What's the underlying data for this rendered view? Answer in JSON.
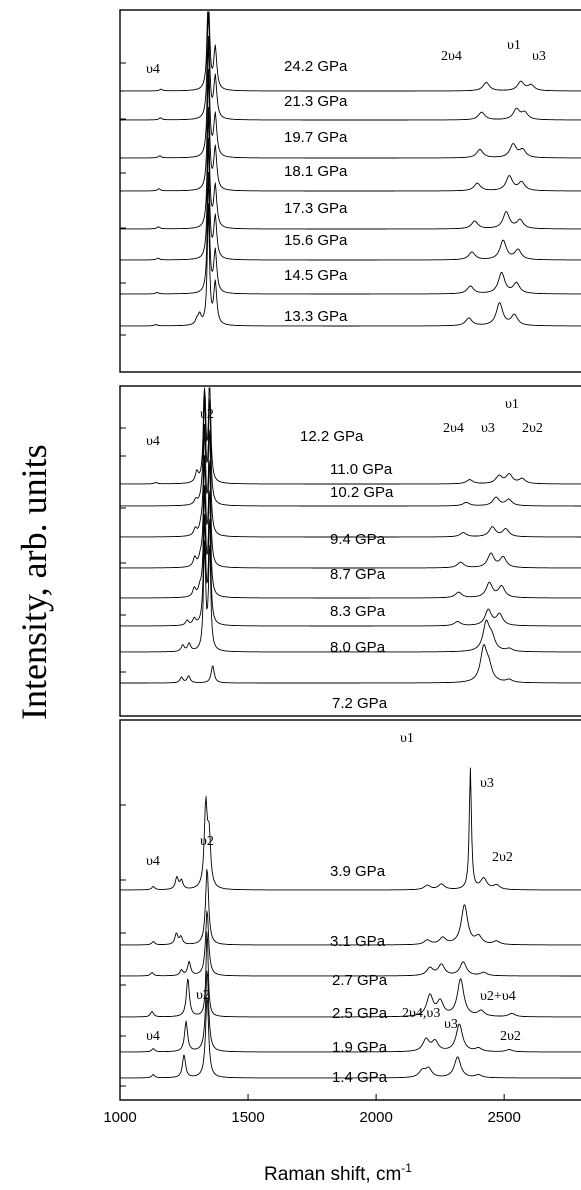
{
  "chart_data": {
    "type": "line",
    "title": "",
    "xlabel": "Raman shift, cm",
    "xlabel_sup": "-1",
    "ylabel": "Intensity, arb. units",
    "xlim": [
      1000,
      2800
    ],
    "xticks": [
      1000,
      1500,
      2000,
      2500
    ],
    "panels": [
      {
        "name": "top",
        "series": [
          {
            "name": "13.3 GPa",
            "peaks": [
              [
                1140,
                4
              ],
              [
                1300,
                14
              ],
              [
                1311,
                28
              ],
              [
                1345,
                340
              ],
              [
                1372,
                120
              ],
              [
                2362,
                22
              ],
              [
                2482,
                65
              ],
              [
                2540,
                30
              ]
            ]
          },
          {
            "name": "14.5 GPa",
            "peaks": [
              [
                1145,
                4
              ],
              [
                1345,
                340
              ],
              [
                1372,
                120
              ],
              [
                2368,
                22
              ],
              [
                2490,
                60
              ],
              [
                2548,
                30
              ]
            ]
          },
          {
            "name": "15.6 GPa",
            "peaks": [
              [
                1148,
                5
              ],
              [
                1345,
                340
              ],
              [
                1372,
                120
              ],
              [
                2374,
                22
              ],
              [
                2496,
                55
              ],
              [
                2554,
                28
              ]
            ]
          },
          {
            "name": "17.3 GPa",
            "peaks": [
              [
                1150,
                6
              ],
              [
                1345,
                340
              ],
              [
                1372,
                120
              ],
              [
                2385,
                22
              ],
              [
                2508,
                48
              ],
              [
                2562,
                25
              ]
            ]
          },
          {
            "name": "18.1 GPa",
            "peaks": [
              [
                1152,
                6
              ],
              [
                1345,
                340
              ],
              [
                1372,
                120
              ],
              [
                2395,
                22
              ],
              [
                2520,
                42
              ],
              [
                2568,
                24
              ]
            ]
          },
          {
            "name": "19.7 GPa",
            "peaks": [
              [
                1155,
                6
              ],
              [
                1345,
                340
              ],
              [
                1372,
                120
              ],
              [
                2405,
                24
              ],
              [
                2535,
                38
              ],
              [
                2572,
                22
              ]
            ]
          },
          {
            "name": "21.3 GPa",
            "peaks": [
              [
                1158,
                6
              ],
              [
                1345,
                340
              ],
              [
                1372,
                120
              ],
              [
                2412,
                22
              ],
              [
                2548,
                30
              ],
              [
                2580,
                20
              ]
            ]
          },
          {
            "name": "24.2 GPa",
            "peaks": [
              [
                1160,
                5
              ],
              [
                1345,
                340
              ],
              [
                1372,
                120
              ],
              [
                2430,
                24
              ],
              [
                2565,
                26
              ],
              [
                2605,
                16
              ]
            ]
          }
        ],
        "annotations": [
          "υ4",
          "2υ4",
          "υ1",
          "υ3"
        ]
      },
      {
        "name": "middle",
        "series": [
          {
            "name": "7.2 GPa",
            "peaks": [
              [
                1240,
                16
              ],
              [
                1268,
                20
              ],
              [
                1362,
                50
              ],
              [
                2420,
                95
              ],
              [
                2440,
                40
              ],
              [
                2520,
                8
              ]
            ]
          },
          {
            "name": "8.0 GPa",
            "peaks": [
              [
                1245,
                18
              ],
              [
                1270,
                22
              ],
              [
                1330,
                300
              ],
              [
                1350,
                300
              ],
              [
                2430,
                80
              ],
              [
                2452,
                35
              ],
              [
                2520,
                8
              ]
            ]
          },
          {
            "name": "8.3 GPa",
            "peaks": [
              [
                1262,
                14
              ],
              [
                1290,
                18
              ],
              [
                1330,
                300
              ],
              [
                1350,
                300
              ],
              [
                2318,
                12
              ],
              [
                2438,
                45
              ],
              [
                2482,
                32
              ]
            ]
          },
          {
            "name": "8.7 GPa",
            "peaks": [
              [
                1290,
                24
              ],
              [
                1312,
                20
              ],
              [
                1330,
                300
              ],
              [
                1350,
                300
              ],
              [
                2322,
                16
              ],
              [
                2442,
                42
              ],
              [
                2490,
                32
              ]
            ]
          },
          {
            "name": "9.4 GPa",
            "peaks": [
              [
                1292,
                26
              ],
              [
                1314,
                20
              ],
              [
                1330,
                300
              ],
              [
                1350,
                300
              ],
              [
                2330,
                16
              ],
              [
                2448,
                40
              ],
              [
                2496,
                30
              ]
            ]
          },
          {
            "name": "10.2 GPa",
            "peaks": [
              [
                1294,
                20
              ],
              [
                1316,
                18
              ],
              [
                1330,
                300
              ],
              [
                1350,
                300
              ],
              [
                2340,
                12
              ],
              [
                2454,
                28
              ],
              [
                2506,
                22
              ]
            ]
          },
          {
            "name": "11.0 GPa",
            "peaks": [
              [
                1296,
                14
              ],
              [
                1320,
                14
              ],
              [
                1330,
                300
              ],
              [
                1350,
                300
              ],
              [
                2352,
                10
              ],
              [
                2468,
                24
              ],
              [
                2518,
                18
              ]
            ]
          },
          {
            "name": "12.2 GPa",
            "peaks": [
              [
                1140,
                4
              ],
              [
                1300,
                30
              ],
              [
                1330,
                300
              ],
              [
                1350,
                300
              ],
              [
                2365,
                12
              ],
              [
                2480,
                22
              ],
              [
                2520,
                26
              ],
              [
                2570,
                14
              ]
            ]
          }
        ],
        "annotations": [
          "υ4",
          "υ2",
          "2υ4",
          "υ3",
          "υ1",
          "2υ2"
        ]
      },
      {
        "name": "bottom",
        "series": [
          {
            "name": "1.4 GPa",
            "peaks": [
              [
                1130,
                6
              ],
              [
                1250,
                42
              ],
              [
                1340,
                150
              ],
              [
                2180,
                12
              ],
              [
                2205,
                16
              ],
              [
                2318,
                38
              ],
              [
                2400,
                5
              ]
            ]
          },
          {
            "name": "1.9 GPa",
            "peaks": [
              [
                1130,
                6
              ],
              [
                1258,
                55
              ],
              [
                1340,
                150
              ],
              [
                2195,
                22
              ],
              [
                2230,
                18
              ],
              [
                2325,
                50
              ],
              [
                2400,
                6
              ],
              [
                2520,
                4
              ]
            ]
          },
          {
            "name": "2.5 GPa",
            "peaks": [
              [
                1125,
                10
              ],
              [
                1265,
                70
              ],
              [
                1340,
                160
              ],
              [
                2210,
                38
              ],
              [
                2250,
                26
              ],
              [
                2330,
                68
              ],
              [
                2410,
                10
              ],
              [
                2530,
                6
              ]
            ]
          },
          {
            "name": "2.7 GPa",
            "peaks": [
              [
                1125,
                6
              ],
              [
                1240,
                10
              ],
              [
                1270,
                25
              ],
              [
                1340,
                120
              ],
              [
                2210,
                14
              ],
              [
                2255,
                20
              ],
              [
                2340,
                25
              ],
              [
                2420,
                6
              ]
            ]
          },
          {
            "name": "3.1 GPa",
            "peaks": [
              [
                1130,
                6
              ],
              [
                1220,
                20
              ],
              [
                1238,
                14
              ],
              [
                1340,
                140
              ],
              [
                2200,
                8
              ],
              [
                2260,
                12
              ],
              [
                2345,
                72
              ],
              [
                2400,
                14
              ],
              [
                2470,
                6
              ]
            ]
          },
          {
            "name": "3.9 GPa",
            "peaks": [
              [
                1130,
                6
              ],
              [
                1222,
                22
              ],
              [
                1240,
                16
              ],
              [
                1335,
                150
              ],
              [
                1348,
                90
              ],
              [
                2200,
                8
              ],
              [
                2255,
                10
              ],
              [
                2368,
                220
              ],
              [
                2420,
                20
              ],
              [
                2470,
                8
              ]
            ]
          }
        ],
        "annotations": [
          "υ4",
          "υ2",
          "υ1",
          "υ3",
          "2υ2",
          "υ2",
          "2υ4,υ3",
          "υ3",
          "υ2+υ4",
          "υ4",
          "2υ2"
        ]
      }
    ]
  }
}
